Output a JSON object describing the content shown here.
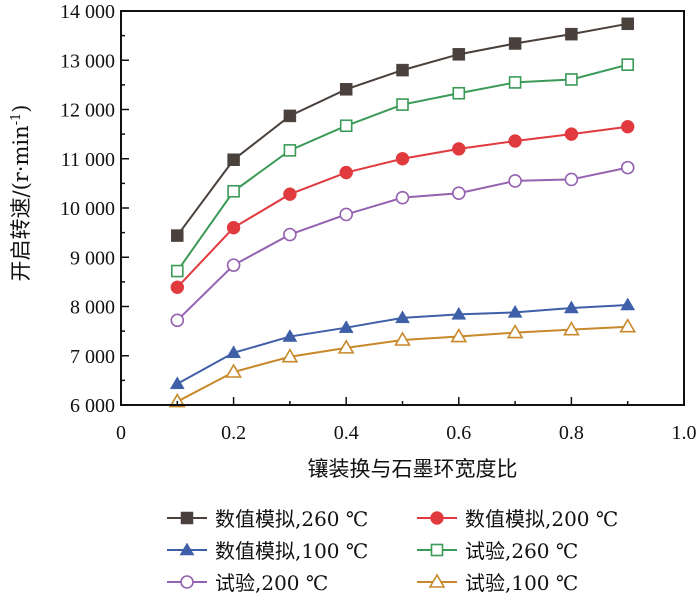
{
  "chart_data": {
    "type": "line",
    "title": "",
    "xlabel": "镶装换与石墨环宽度比",
    "ylabel": "开启转速/(r·min",
    "ylabel_sup": "-1",
    "ylabel_close": ")",
    "xlim": [
      0,
      1.0
    ],
    "ylim": [
      6000,
      14000
    ],
    "xticks": [
      0,
      0.2,
      0.4,
      0.6,
      0.8,
      1.0
    ],
    "xtick_labels": [
      "0",
      "0.2",
      "0.4",
      "0.6",
      "0.8",
      "1.0"
    ],
    "yticks": [
      6000,
      7000,
      8000,
      9000,
      10000,
      11000,
      12000,
      13000,
      14000
    ],
    "ytick_labels": [
      "6 000",
      "7 000",
      "8 000",
      "9 000",
      "10 000",
      "11 000",
      "12 000",
      "13 000",
      "14 000"
    ],
    "grid": false,
    "legend_position": "bottom",
    "x": [
      0.1,
      0.2,
      0.3,
      0.4,
      0.5,
      0.6,
      0.7,
      0.8,
      0.9
    ],
    "series": [
      {
        "name": "数值模拟,260 ℃",
        "color": "#4a403c",
        "marker": "square-filled",
        "values": [
          9440,
          10980,
          11870,
          12410,
          12800,
          13120,
          13340,
          13530,
          13740
        ]
      },
      {
        "name": "数值模拟,200 ℃",
        "color": "#e0393e",
        "marker": "circle-filled",
        "values": [
          8390,
          9600,
          10280,
          10720,
          11000,
          11200,
          11360,
          11500,
          11650
        ]
      },
      {
        "name": "数值模拟,100 ℃",
        "color": "#3f5fa8",
        "marker": "triangle-filled",
        "values": [
          6430,
          7060,
          7390,
          7570,
          7770,
          7840,
          7880,
          7970,
          8030
        ]
      },
      {
        "name": "试验,260 ℃",
        "color": "#3a9a57",
        "marker": "square-open",
        "values": [
          8720,
          10340,
          11170,
          11670,
          12100,
          12330,
          12550,
          12610,
          12910
        ]
      },
      {
        "name": "试验,200 ℃",
        "color": "#9462b0",
        "marker": "circle-open",
        "values": [
          7720,
          8840,
          9460,
          9870,
          10210,
          10300,
          10550,
          10580,
          10820
        ]
      },
      {
        "name": "试验,100 ℃",
        "color": "#c8892a",
        "marker": "triangle-open",
        "values": [
          6070,
          6670,
          6980,
          7160,
          7320,
          7390,
          7470,
          7530,
          7590
        ]
      }
    ]
  }
}
